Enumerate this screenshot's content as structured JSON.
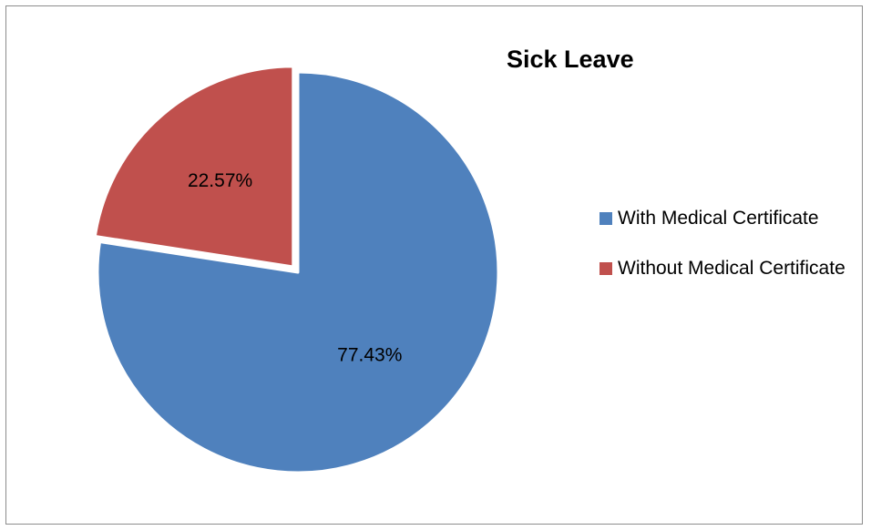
{
  "chart_data": {
    "type": "pie",
    "title": "Sick Leave",
    "categories": [
      "With Medical Certificate",
      "Without Medical Certificate"
    ],
    "values": [
      77.43,
      22.57
    ],
    "data_labels": [
      "77.43%",
      "22.57%"
    ],
    "colors": [
      "#4f81bd",
      "#c0504d"
    ],
    "exploded_slice": "Without Medical Certificate",
    "legend_position": "right"
  }
}
